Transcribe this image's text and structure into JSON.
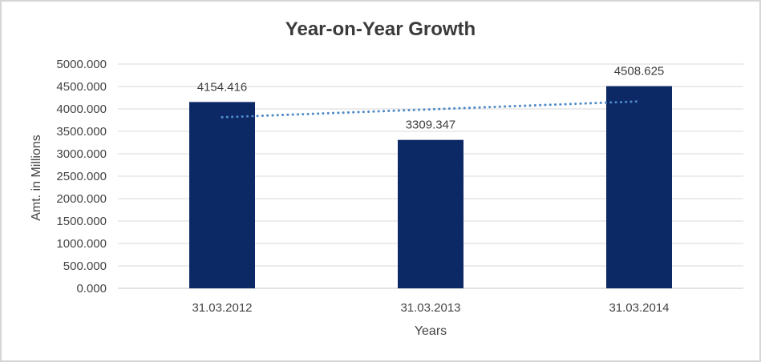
{
  "window": {
    "background_color": "#ffffff",
    "border_color": "#d6d6d6"
  },
  "chart_data": {
    "type": "bar",
    "title": "Year-on-Year Growth",
    "xlabel": "Years",
    "ylabel": "Amt. in Millions",
    "categories": [
      "31.03.2012",
      "31.03.2013",
      "31.03.2014"
    ],
    "values": [
      4154.416,
      3309.347,
      4508.625
    ],
    "data_labels": [
      "4154.416",
      "3309.347",
      "4508.625"
    ],
    "ylim": [
      0,
      5000
    ],
    "ytick_step": 500,
    "ytick_labels": [
      "0.000",
      "500.000",
      "1000.000",
      "1500.000",
      "2000.000",
      "2500.000",
      "3000.000",
      "3500.000",
      "4000.000",
      "4500.000",
      "5000.000"
    ],
    "grid": true,
    "legend": "none",
    "bar_color": "#0c2966",
    "gridline_color": "#dadada",
    "axis_line_color": "#c6c6c6",
    "label_color": "#3d3d3d",
    "tick_label_color": "#444444",
    "trendline": {
      "style": "dotted",
      "color": "#4e8ac8",
      "start_value": 3814,
      "end_value": 4168
    }
  }
}
